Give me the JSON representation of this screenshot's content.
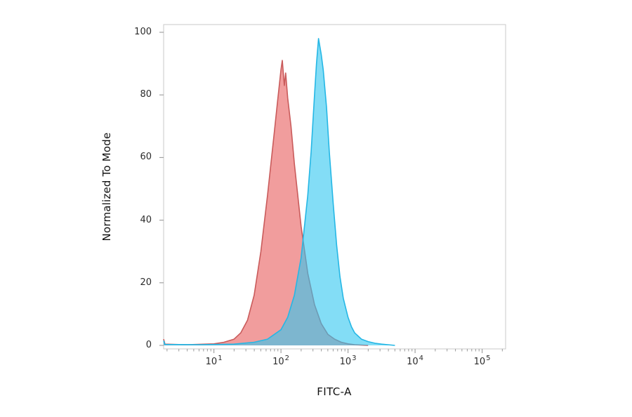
{
  "figure": {
    "background": "#ffffff"
  },
  "chart_data": {
    "type": "area",
    "chart_kind": "flow-cytometry-histogram-overlay",
    "title": "",
    "xlabel": "FITC-A",
    "ylabel": "Normalized To Mode",
    "x_scale": "log10",
    "xlim_log10": [
      0.25,
      5.35
    ],
    "ylim": [
      0,
      100
    ],
    "y_ticks": [
      0,
      20,
      40,
      60,
      80,
      100
    ],
    "x_ticks": [
      {
        "label_base": "10",
        "exponent": "1",
        "log10": 1
      },
      {
        "label_base": "10",
        "exponent": "2",
        "log10": 2
      },
      {
        "label_base": "10",
        "exponent": "3",
        "log10": 3
      },
      {
        "label_base": "10",
        "exponent": "4",
        "log10": 4
      },
      {
        "label_base": "10",
        "exponent": "5",
        "log10": 5
      }
    ],
    "x_minor_ticks_per_decade": [
      2,
      3,
      4,
      5,
      6,
      7,
      8,
      9
    ],
    "grid": "off",
    "legend": "none",
    "axis_color": "#c9c9c9",
    "tick_color": "#9a9a9a",
    "text_color": "#2b2b2b",
    "series": [
      {
        "name": "red-population",
        "peak_x": 110,
        "peak_y": 91,
        "stroke": "#c95b5b",
        "fill": "#e85b5b",
        "fill_opacity": 0.6,
        "stroke_width": 1.6,
        "points": [
          [
            0.25,
            2.0
          ],
          [
            0.27,
            0.4
          ],
          [
            0.6,
            0.2
          ],
          [
            1.0,
            0.5
          ],
          [
            1.15,
            1.0
          ],
          [
            1.3,
            2.0
          ],
          [
            1.4,
            4.0
          ],
          [
            1.5,
            8.0
          ],
          [
            1.6,
            16.0
          ],
          [
            1.7,
            30.0
          ],
          [
            1.8,
            48.0
          ],
          [
            1.9,
            68.0
          ],
          [
            1.95,
            78.0
          ],
          [
            2.0,
            88.0
          ],
          [
            2.02,
            91.0
          ],
          [
            2.05,
            83.0
          ],
          [
            2.07,
            87.0
          ],
          [
            2.1,
            79.0
          ],
          [
            2.15,
            70.0
          ],
          [
            2.2,
            58.0
          ],
          [
            2.3,
            38.0
          ],
          [
            2.4,
            23.0
          ],
          [
            2.5,
            13.0
          ],
          [
            2.6,
            7.0
          ],
          [
            2.7,
            3.5
          ],
          [
            2.8,
            2.0
          ],
          [
            2.9,
            1.0
          ],
          [
            3.0,
            0.5
          ],
          [
            3.1,
            0.2
          ],
          [
            3.3,
            0.0
          ]
        ]
      },
      {
        "name": "cyan-population",
        "peak_x": 360,
        "peak_y": 98,
        "stroke": "#25b7e5",
        "fill": "#30c6f0",
        "fill_opacity": 0.6,
        "stroke_width": 1.6,
        "points": [
          [
            0.25,
            1.5
          ],
          [
            0.27,
            0.3
          ],
          [
            0.8,
            0.2
          ],
          [
            1.3,
            0.4
          ],
          [
            1.6,
            1.0
          ],
          [
            1.8,
            2.0
          ],
          [
            2.0,
            5.0
          ],
          [
            2.1,
            9.0
          ],
          [
            2.2,
            16.0
          ],
          [
            2.3,
            28.0
          ],
          [
            2.4,
            48.0
          ],
          [
            2.45,
            62.0
          ],
          [
            2.5,
            80.0
          ],
          [
            2.53,
            90.0
          ],
          [
            2.56,
            98.0
          ],
          [
            2.6,
            93.0
          ],
          [
            2.63,
            88.0
          ],
          [
            2.68,
            76.0
          ],
          [
            2.72,
            62.0
          ],
          [
            2.78,
            45.0
          ],
          [
            2.83,
            32.0
          ],
          [
            2.88,
            22.0
          ],
          [
            2.93,
            15.0
          ],
          [
            3.0,
            9.0
          ],
          [
            3.05,
            6.0
          ],
          [
            3.1,
            4.0
          ],
          [
            3.2,
            2.0
          ],
          [
            3.3,
            1.2
          ],
          [
            3.4,
            0.7
          ],
          [
            3.5,
            0.4
          ],
          [
            3.7,
            0.0
          ]
        ]
      }
    ]
  }
}
